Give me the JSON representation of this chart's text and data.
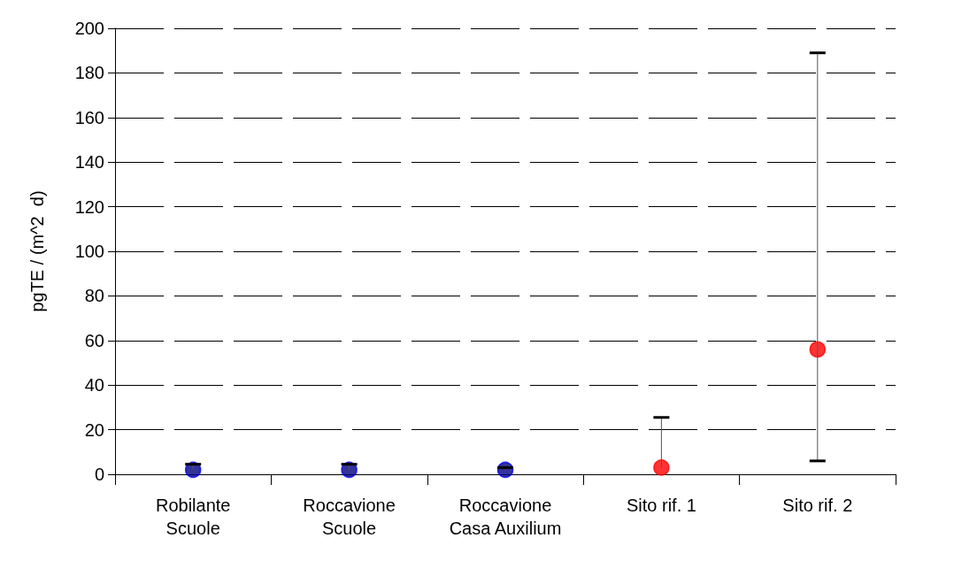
{
  "chart_data": {
    "type": "scatter",
    "ylabel": "pgTE / (m^2  d)",
    "categories": [
      "Robilante\nScuole",
      "Roccavione\nScuole",
      "Roccavione\nCasa Auxilium",
      "Sito rif. 1",
      "Sito rif. 2"
    ],
    "series": [
      {
        "color": "#000080",
        "values": [
          2,
          2,
          2,
          null,
          null
        ],
        "errors": [
          [
            2,
            4.5
          ],
          [
            2,
            4.5
          ],
          [
            2,
            3
          ],
          null,
          null
        ]
      },
      {
        "color": "#ff0000",
        "values": [
          null,
          null,
          null,
          3,
          56
        ],
        "errors": [
          null,
          null,
          null,
          [
            3,
            25.5
          ],
          [
            6,
            189
          ]
        ]
      }
    ],
    "ylim": [
      0,
      200
    ],
    "yticks": [
      0,
      20,
      40,
      60,
      80,
      100,
      120,
      140,
      160,
      180,
      200
    ],
    "grid": "y",
    "marker": "circle"
  }
}
